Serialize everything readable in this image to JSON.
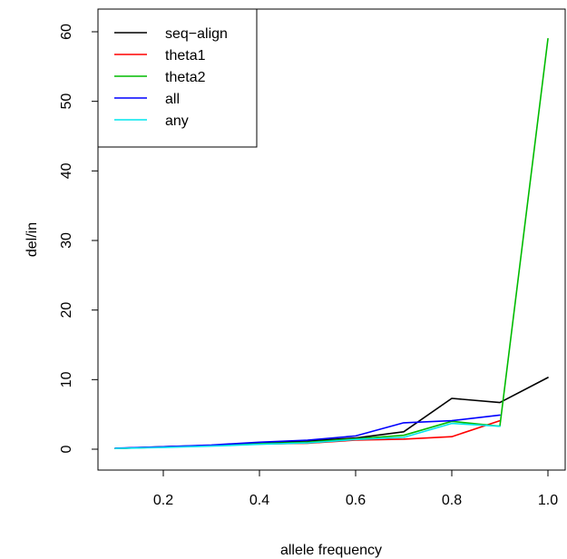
{
  "chart_data": {
    "type": "line",
    "xlabel": "allele frequency",
    "ylabel": "del/in",
    "xlim": [
      0.1,
      1.0
    ],
    "ylim": [
      0,
      60
    ],
    "xticks": [
      0.2,
      0.4,
      0.6,
      0.8,
      1.0
    ],
    "xtick_labels": [
      "0.2",
      "0.4",
      "0.6",
      "0.8",
      "1.0"
    ],
    "yticks": [
      0,
      10,
      20,
      30,
      40,
      50,
      60
    ],
    "ytick_labels": [
      "0",
      "10",
      "20",
      "30",
      "40",
      "50",
      "60"
    ],
    "legend_position": "top-left",
    "x": [
      0.1,
      0.2,
      0.3,
      0.4,
      0.5,
      0.6,
      0.7,
      0.8,
      0.9,
      1.0
    ],
    "series": [
      {
        "name": "seq−align",
        "color": "#000000",
        "values": [
          0.1,
          0.35,
          0.55,
          0.9,
          1.2,
          1.6,
          2.5,
          7.3,
          6.7,
          10.3
        ]
      },
      {
        "name": "theta1",
        "color": "#ff0000",
        "values": [
          0.1,
          0.3,
          0.5,
          0.75,
          0.85,
          1.3,
          1.45,
          1.8,
          4.1,
          null
        ]
      },
      {
        "name": "theta2",
        "color": "#00bb00",
        "values": [
          0.1,
          0.3,
          0.5,
          0.8,
          1.0,
          1.5,
          2.0,
          4.0,
          3.3,
          59.0
        ]
      },
      {
        "name": "all",
        "color": "#0000ff",
        "values": [
          0.15,
          0.35,
          0.6,
          1.0,
          1.3,
          1.9,
          3.8,
          4.1,
          4.9,
          null
        ]
      },
      {
        "name": "any",
        "color": "#00e5ee",
        "values": [
          0.1,
          0.25,
          0.45,
          0.7,
          0.9,
          1.4,
          1.7,
          3.7,
          3.3,
          null
        ]
      }
    ]
  }
}
